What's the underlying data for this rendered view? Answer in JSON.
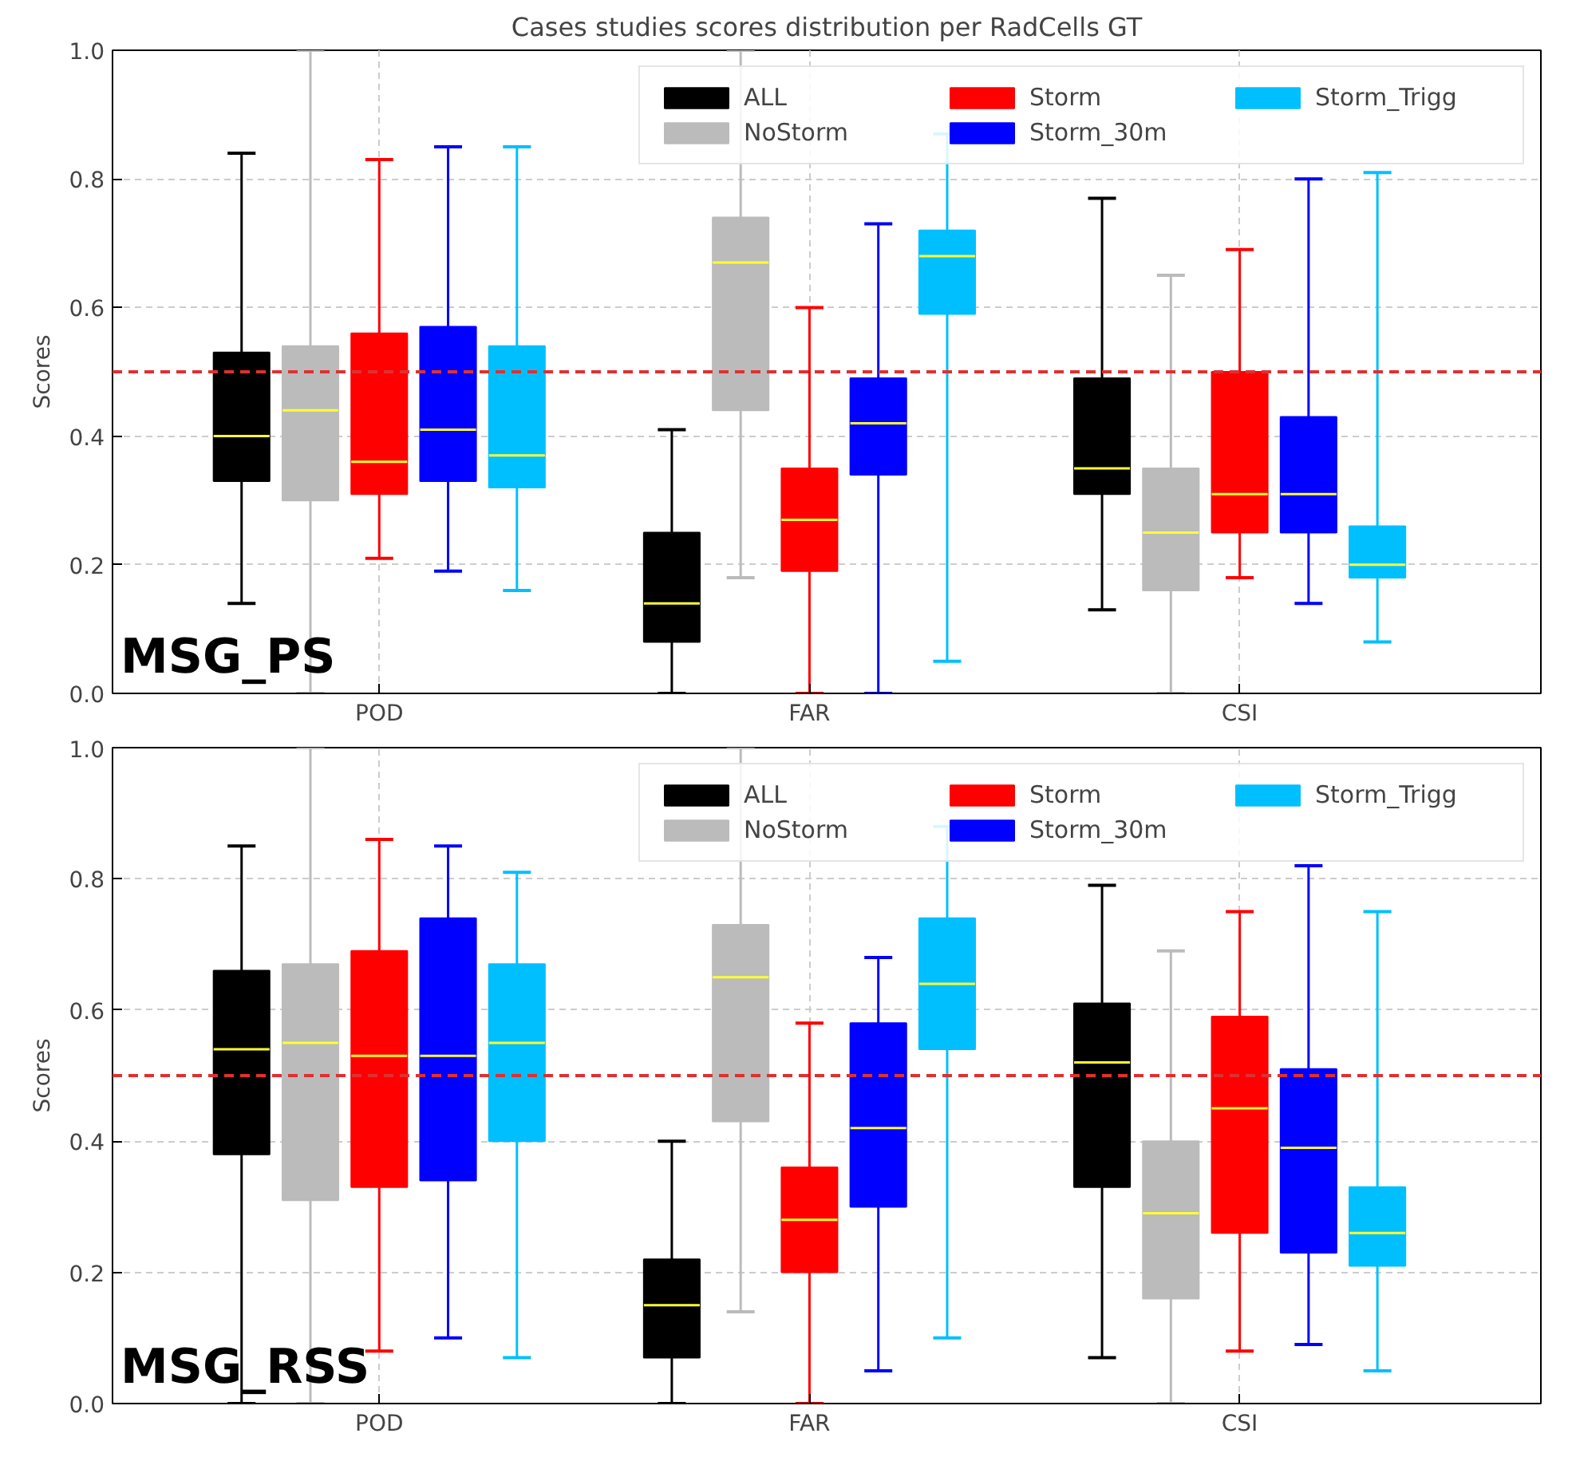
{
  "chart_data": [
    {
      "type": "box",
      "title": "Cases studies scores distribution per RadCells GT",
      "ylabel": "Scores",
      "categories": [
        "POD",
        "FAR",
        "CSI"
      ],
      "ylim": [
        0,
        1
      ],
      "yticks": [
        {
          "value": 0,
          "label": "0.0"
        },
        {
          "value": 0.2,
          "label": "0.2"
        },
        {
          "value": 0.4,
          "label": "0.4"
        },
        {
          "value": 0.6,
          "label": "0.6"
        },
        {
          "value": 0.8,
          "label": "0.8"
        },
        {
          "value": 1,
          "label": "1.0"
        }
      ],
      "grid": true,
      "legend": "top right",
      "ref_lines": [
        {
          "axis": "y",
          "value": 0.5,
          "label": null,
          "color": "#e03030",
          "line_style": "dashed"
        }
      ],
      "annotations": [
        "MSG_PS"
      ],
      "series": [
        {
          "name": "ALL",
          "color": "#000000",
          "boxes": [
            {
              "low": 0.14,
              "q1": 0.33,
              "median": 0.4,
              "q3": 0.53,
              "high": 0.84
            },
            {
              "low": 0.0,
              "q1": 0.08,
              "median": 0.14,
              "q3": 0.25,
              "high": 0.41
            },
            {
              "low": 0.13,
              "q1": 0.31,
              "median": 0.35,
              "q3": 0.49,
              "high": 0.77
            }
          ]
        },
        {
          "name": "NoStorm",
          "color": "#bbbbbb",
          "boxes": [
            {
              "low": 0.0,
              "q1": 0.3,
              "median": 0.44,
              "q3": 0.54,
              "high": 1.0
            },
            {
              "low": 0.18,
              "q1": 0.44,
              "median": 0.67,
              "q3": 0.74,
              "high": 1.0
            },
            {
              "low": 0.0,
              "q1": 0.16,
              "median": 0.25,
              "q3": 0.35,
              "high": 0.65
            }
          ]
        },
        {
          "name": "Storm",
          "color": "#ff0000",
          "boxes": [
            {
              "low": 0.21,
              "q1": 0.31,
              "median": 0.36,
              "q3": 0.56,
              "high": 0.83
            },
            {
              "low": 0.0,
              "q1": 0.19,
              "median": 0.27,
              "q3": 0.35,
              "high": 0.6
            },
            {
              "low": 0.18,
              "q1": 0.25,
              "median": 0.31,
              "q3": 0.5,
              "high": 0.69
            }
          ]
        },
        {
          "name": "Storm_30m",
          "color": "#0000ff",
          "boxes": [
            {
              "low": 0.19,
              "q1": 0.33,
              "median": 0.41,
              "q3": 0.57,
              "high": 0.85
            },
            {
              "low": 0.0,
              "q1": 0.34,
              "median": 0.42,
              "q3": 0.49,
              "high": 0.73
            },
            {
              "low": 0.14,
              "q1": 0.25,
              "median": 0.31,
              "q3": 0.43,
              "high": 0.8
            }
          ]
        },
        {
          "name": "Storm_Trigg",
          "color": "#00bfff",
          "boxes": [
            {
              "low": 0.16,
              "q1": 0.32,
              "median": 0.37,
              "q3": 0.54,
              "high": 0.85
            },
            {
              "low": 0.05,
              "q1": 0.59,
              "median": 0.68,
              "q3": 0.72,
              "high": 0.87
            },
            {
              "low": 0.08,
              "q1": 0.18,
              "median": 0.2,
              "q3": 0.26,
              "high": 0.81
            }
          ]
        }
      ]
    },
    {
      "type": "box",
      "ylabel": "Scores",
      "categories": [
        "POD",
        "FAR",
        "CSI"
      ],
      "ylim": [
        0,
        1
      ],
      "yticks": [
        {
          "value": 0,
          "label": "0.0"
        },
        {
          "value": 0.2,
          "label": "0.2"
        },
        {
          "value": 0.4,
          "label": "0.4"
        },
        {
          "value": 0.6,
          "label": "0.6"
        },
        {
          "value": 0.8,
          "label": "0.8"
        },
        {
          "value": 1,
          "label": "1.0"
        }
      ],
      "grid": true,
      "legend": "top right",
      "ref_lines": [
        {
          "axis": "y",
          "value": 0.5,
          "label": null,
          "color": "#e03030",
          "line_style": "dashed"
        }
      ],
      "annotations": [
        "MSG_RSS"
      ],
      "series": [
        {
          "name": "ALL",
          "color": "#000000",
          "boxes": [
            {
              "low": 0.0,
              "q1": 0.38,
              "median": 0.54,
              "q3": 0.66,
              "high": 0.85
            },
            {
              "low": 0.0,
              "q1": 0.07,
              "median": 0.15,
              "q3": 0.22,
              "high": 0.4
            },
            {
              "low": 0.07,
              "q1": 0.33,
              "median": 0.52,
              "q3": 0.61,
              "high": 0.79
            }
          ]
        },
        {
          "name": "NoStorm",
          "color": "#bbbbbb",
          "boxes": [
            {
              "low": 0.0,
              "q1": 0.31,
              "median": 0.55,
              "q3": 0.67,
              "high": 1.0
            },
            {
              "low": 0.14,
              "q1": 0.43,
              "median": 0.65,
              "q3": 0.73,
              "high": 1.0
            },
            {
              "low": 0.0,
              "q1": 0.16,
              "median": 0.29,
              "q3": 0.4,
              "high": 0.69
            }
          ]
        },
        {
          "name": "Storm",
          "color": "#ff0000",
          "boxes": [
            {
              "low": 0.08,
              "q1": 0.33,
              "median": 0.53,
              "q3": 0.69,
              "high": 0.86
            },
            {
              "low": 0.0,
              "q1": 0.2,
              "median": 0.28,
              "q3": 0.36,
              "high": 0.58
            },
            {
              "low": 0.08,
              "q1": 0.26,
              "median": 0.45,
              "q3": 0.59,
              "high": 0.75
            }
          ]
        },
        {
          "name": "Storm_30m",
          "color": "#0000ff",
          "boxes": [
            {
              "low": 0.1,
              "q1": 0.34,
              "median": 0.53,
              "q3": 0.74,
              "high": 0.85
            },
            {
              "low": 0.05,
              "q1": 0.3,
              "median": 0.42,
              "q3": 0.58,
              "high": 0.68
            },
            {
              "low": 0.09,
              "q1": 0.23,
              "median": 0.39,
              "q3": 0.51,
              "high": 0.82
            }
          ]
        },
        {
          "name": "Storm_Trigg",
          "color": "#00bfff",
          "boxes": [
            {
              "low": 0.07,
              "q1": 0.4,
              "median": 0.55,
              "q3": 0.67,
              "high": 0.81
            },
            {
              "low": 0.1,
              "q1": 0.54,
              "median": 0.64,
              "q3": 0.74,
              "high": 0.88
            },
            {
              "low": 0.05,
              "q1": 0.21,
              "median": 0.26,
              "q3": 0.33,
              "high": 0.75
            }
          ]
        }
      ]
    }
  ]
}
